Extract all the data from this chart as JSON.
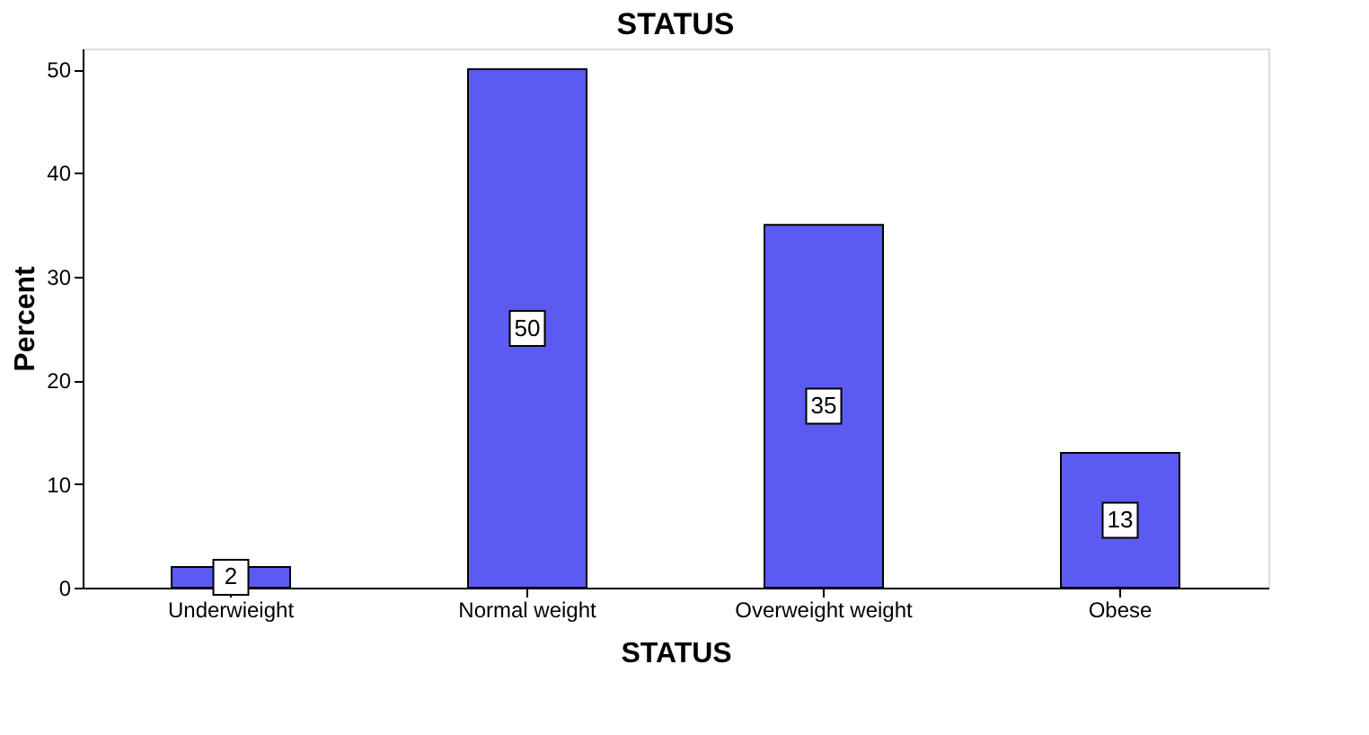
{
  "chart_data": {
    "type": "bar",
    "title": "STATUS",
    "xlabel": "STATUS",
    "ylabel": "Percent",
    "categories": [
      "Underwieight",
      "Normal weight",
      "Overweight weight",
      "Obese"
    ],
    "values": [
      2,
      50,
      35,
      13
    ],
    "color": "#5b5bf2",
    "ylim": [
      0,
      52
    ],
    "yticks": [
      0,
      10,
      20,
      30,
      40,
      50
    ],
    "grid": false,
    "data_labels": true
  }
}
